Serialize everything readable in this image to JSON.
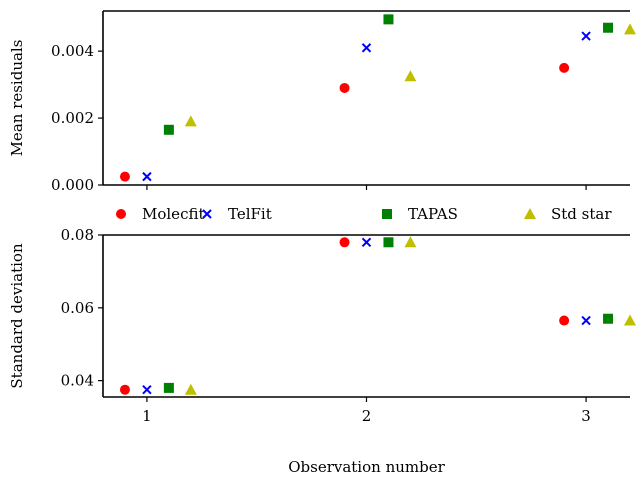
{
  "chart_data": [
    {
      "type": "scatter",
      "title": "",
      "xlabel": "",
      "ylabel": "Mean residuals",
      "xlim": [
        0.8,
        3.2
      ],
      "ylim": [
        0.0,
        0.0052
      ],
      "yticks": [
        0.0,
        0.002,
        0.004
      ],
      "ytick_labels": [
        "0.000",
        "0.002",
        "0.004"
      ],
      "xticks": [
        1,
        2,
        3
      ],
      "xtick_labels": [
        "",
        "",
        ""
      ],
      "series": [
        {
          "name": "Molecfit",
          "x": [
            0.9,
            1.9,
            2.9
          ],
          "values": [
            0.00025,
            0.0029,
            0.0035
          ]
        },
        {
          "name": "TelFit",
          "x": [
            1.0,
            2.0,
            3.0
          ],
          "values": [
            0.00025,
            0.0041,
            0.00445
          ]
        },
        {
          "name": "TAPAS",
          "x": [
            1.1,
            2.1,
            3.1
          ],
          "values": [
            0.00165,
            0.00495,
            0.0047
          ]
        },
        {
          "name": "Std star",
          "x": [
            1.2,
            2.2,
            3.2
          ],
          "values": [
            0.0019,
            0.00325,
            0.00465
          ]
        }
      ]
    },
    {
      "type": "scatter",
      "title": "",
      "xlabel": "Observation number",
      "ylabel": "Standard deviation",
      "xlim": [
        0.8,
        3.2
      ],
      "ylim": [
        0.0355,
        0.08
      ],
      "yticks": [
        0.04,
        0.06,
        0.08
      ],
      "ytick_labels": [
        "0.04",
        "0.06",
        "0.08"
      ],
      "xticks": [
        1,
        2,
        3
      ],
      "xtick_labels": [
        "1",
        "2",
        "3"
      ],
      "series": [
        {
          "name": "Molecfit",
          "x": [
            0.9,
            1.9,
            2.9
          ],
          "values": [
            0.0375,
            0.078,
            0.0565
          ]
        },
        {
          "name": "TelFit",
          "x": [
            1.0,
            2.0,
            3.0
          ],
          "values": [
            0.0375,
            0.078,
            0.0565
          ]
        },
        {
          "name": "TAPAS",
          "x": [
            1.1,
            2.1,
            3.1
          ],
          "values": [
            0.038,
            0.078,
            0.057
          ]
        },
        {
          "name": "Std star",
          "x": [
            1.2,
            2.2,
            3.2
          ],
          "values": [
            0.0375,
            0.078,
            0.0565
          ]
        }
      ]
    }
  ],
  "legend": {
    "placement": "between-panels",
    "entries": [
      {
        "label": "Molecfit",
        "marker": "circle",
        "color": "#ff0000"
      },
      {
        "label": "TelFit",
        "marker": "x",
        "color": "#0000ff"
      },
      {
        "label": "TAPAS",
        "marker": "square",
        "color": "#008000"
      },
      {
        "label": "Std star",
        "marker": "triangle",
        "color": "#bfbf00"
      }
    ]
  }
}
